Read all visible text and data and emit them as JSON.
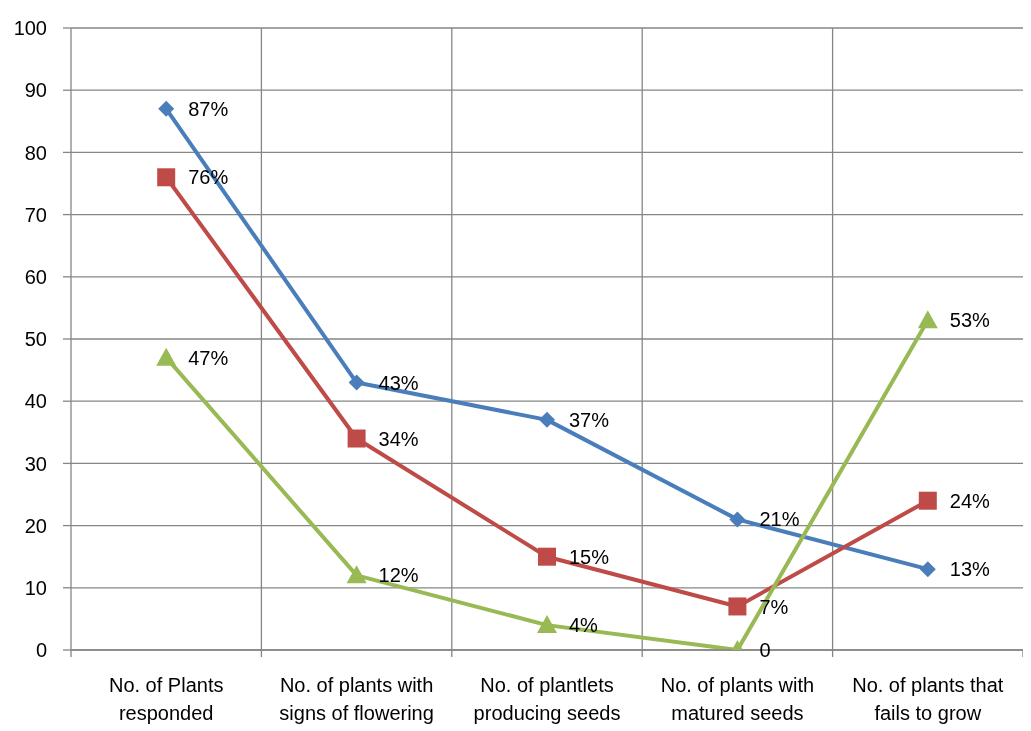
{
  "chart_data": {
    "type": "line",
    "categories": [
      "No. of Plants responded",
      "No. of plants with signs of flowering",
      "No. of plantlets producing seeds",
      "No. of plants with matured seeds",
      "No. of plants that fails to grow"
    ],
    "series": [
      {
        "color": "#4a7ebb",
        "marker": "diamond",
        "values": [
          87,
          43,
          37,
          21,
          13
        ],
        "value_labels": [
          "87%",
          "43%",
          "37%",
          "21%",
          "13%"
        ]
      },
      {
        "color": "#be4b48",
        "marker": "square",
        "values": [
          76,
          34,
          15,
          7,
          24
        ],
        "value_labels": [
          "76%",
          "34%",
          "15%",
          "7%",
          "24%"
        ]
      },
      {
        "color": "#98b954",
        "marker": "triangle",
        "values": [
          47,
          12,
          4,
          0,
          53
        ],
        "value_labels": [
          "47%",
          "12%",
          "4%",
          "0",
          "53%"
        ]
      }
    ],
    "ylim": [
      0,
      100
    ],
    "yticks": [
      0,
      10,
      20,
      30,
      40,
      50,
      60,
      70,
      80,
      90,
      100
    ],
    "grid": true,
    "line_style": "solid"
  }
}
